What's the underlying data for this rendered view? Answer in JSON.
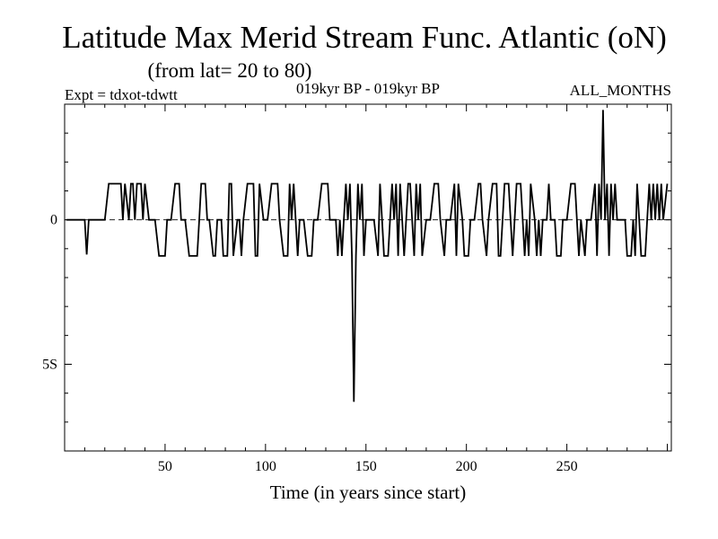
{
  "chart_data": {
    "type": "line",
    "title": "Latitude Max Merid Stream Func. Atlantic (oN)",
    "subtitle": "(from lat= 20 to 80)",
    "header_left": "Expt = tdxot-tdwtt",
    "header_center": "019kyr BP - 019kyr BP",
    "header_right": "ALL_MONTHS",
    "xlabel": "Time (in years since start)",
    "ylabel": "",
    "xlim": [
      0,
      302
    ],
    "ylim": [
      -8,
      4
    ],
    "x_ticks": [
      {
        "value": 50,
        "label": "50"
      },
      {
        "value": 100,
        "label": "100"
      },
      {
        "value": 150,
        "label": "150"
      },
      {
        "value": 200,
        "label": "200"
      },
      {
        "value": 250,
        "label": "250"
      }
    ],
    "y_ticks": [
      {
        "value": 0,
        "label": "0"
      },
      {
        "value": -5,
        "label": "5S"
      }
    ],
    "reference_line": 0,
    "series": [
      {
        "values": [
          [
            1,
            0
          ],
          [
            10,
            0
          ],
          [
            11,
            -1.2
          ],
          [
            12,
            0
          ],
          [
            20,
            0
          ],
          [
            22,
            1.25
          ],
          [
            28,
            1.25
          ],
          [
            29,
            0
          ],
          [
            30,
            1.25
          ],
          [
            32,
            0
          ],
          [
            33,
            1.25
          ],
          [
            34,
            1.25
          ],
          [
            35,
            0
          ],
          [
            36,
            1.25
          ],
          [
            38,
            1.25
          ],
          [
            39,
            0
          ],
          [
            40,
            1.25
          ],
          [
            42,
            0
          ],
          [
            45,
            0
          ],
          [
            47,
            -1.25
          ],
          [
            50,
            -1.25
          ],
          [
            51,
            0
          ],
          [
            53,
            0
          ],
          [
            55,
            1.25
          ],
          [
            57,
            1.25
          ],
          [
            58,
            0
          ],
          [
            60,
            0
          ],
          [
            62,
            -1.25
          ],
          [
            66,
            -1.25
          ],
          [
            67,
            0
          ],
          [
            68,
            1.25
          ],
          [
            70,
            1.25
          ],
          [
            71,
            0
          ],
          [
            72,
            0
          ],
          [
            74,
            -1.25
          ],
          [
            75,
            -1.25
          ],
          [
            76,
            0
          ],
          [
            78,
            0
          ],
          [
            79,
            -1.25
          ],
          [
            81,
            -1.25
          ],
          [
            82,
            1.25
          ],
          [
            83,
            1.25
          ],
          [
            84,
            -1.25
          ],
          [
            86,
            0
          ],
          [
            87,
            0
          ],
          [
            88,
            -1.25
          ],
          [
            89,
            0
          ],
          [
            91,
            1.25
          ],
          [
            94,
            1.25
          ],
          [
            95,
            -1.25
          ],
          [
            96,
            -1.25
          ],
          [
            97,
            1.25
          ],
          [
            99,
            0
          ],
          [
            101,
            0
          ],
          [
            103,
            1.25
          ],
          [
            106,
            1.25
          ],
          [
            107,
            0
          ],
          [
            109,
            -1.25
          ],
          [
            111,
            -1.25
          ],
          [
            112,
            1.25
          ],
          [
            113,
            0
          ],
          [
            114,
            1.25
          ],
          [
            116,
            -1.25
          ],
          [
            117,
            0
          ],
          [
            119,
            0
          ],
          [
            121,
            -1.25
          ],
          [
            123,
            -1.25
          ],
          [
            124,
            0
          ],
          [
            126,
            0
          ],
          [
            128,
            1.25
          ],
          [
            131,
            1.25
          ],
          [
            132,
            0
          ],
          [
            135,
            0
          ],
          [
            136,
            -1.25
          ],
          [
            137,
            0
          ],
          [
            138,
            -1.25
          ],
          [
            139,
            0
          ],
          [
            140,
            1.25
          ],
          [
            141,
            0
          ],
          [
            142,
            1.25
          ],
          [
            143,
            -1.25
          ],
          [
            144,
            -6.3
          ],
          [
            145,
            -1.25
          ],
          [
            146,
            1.25
          ],
          [
            147,
            0
          ],
          [
            148,
            1.25
          ],
          [
            149,
            -1.25
          ],
          [
            150,
            0
          ],
          [
            154,
            0
          ],
          [
            156,
            -1.25
          ],
          [
            157,
            1.25
          ],
          [
            158,
            0
          ],
          [
            159,
            -1.25
          ],
          [
            161,
            -1.25
          ],
          [
            162,
            0
          ],
          [
            163,
            1.25
          ],
          [
            164,
            0
          ],
          [
            165,
            1.25
          ],
          [
            166,
            -1.25
          ],
          [
            167,
            1.25
          ],
          [
            168,
            0
          ],
          [
            169,
            -1.25
          ],
          [
            171,
            1.25
          ],
          [
            172,
            1.25
          ],
          [
            173,
            0
          ],
          [
            174,
            -1.25
          ],
          [
            175,
            1.25
          ],
          [
            176,
            0
          ],
          [
            177,
            1.25
          ],
          [
            178,
            -1.25
          ],
          [
            180,
            0
          ],
          [
            182,
            0
          ],
          [
            184,
            1.25
          ],
          [
            186,
            1.25
          ],
          [
            187,
            0
          ],
          [
            189,
            -1.25
          ],
          [
            190,
            0
          ],
          [
            192,
            0
          ],
          [
            194,
            1.25
          ],
          [
            195,
            -1.25
          ],
          [
            196,
            1.25
          ],
          [
            198,
            0
          ],
          [
            199,
            -1.25
          ],
          [
            201,
            -1.25
          ],
          [
            202,
            0
          ],
          [
            204,
            0
          ],
          [
            206,
            1.25
          ],
          [
            207,
            1.25
          ],
          [
            208,
            0
          ],
          [
            210,
            -1.25
          ],
          [
            211,
            0
          ],
          [
            213,
            1.25
          ],
          [
            215,
            1.25
          ],
          [
            216,
            -1.25
          ],
          [
            217,
            -1.25
          ],
          [
            218,
            0
          ],
          [
            219,
            1.25
          ],
          [
            221,
            1.25
          ],
          [
            222,
            0
          ],
          [
            223,
            -1.25
          ],
          [
            224,
            0
          ],
          [
            225,
            1.25
          ],
          [
            227,
            1.25
          ],
          [
            228,
            0
          ],
          [
            229,
            -1.25
          ],
          [
            230,
            0
          ],
          [
            231,
            -1.25
          ],
          [
            232,
            1.25
          ],
          [
            234,
            0
          ],
          [
            235,
            -1.25
          ],
          [
            236,
            0
          ],
          [
            237,
            -1.25
          ],
          [
            238,
            0
          ],
          [
            240,
            0
          ],
          [
            241,
            1.25
          ],
          [
            242,
            0
          ],
          [
            244,
            0
          ],
          [
            245,
            -1.25
          ],
          [
            247,
            -1.25
          ],
          [
            248,
            0
          ],
          [
            250,
            0
          ],
          [
            252,
            1.25
          ],
          [
            254,
            1.25
          ],
          [
            255,
            0
          ],
          [
            256,
            -1.25
          ],
          [
            257,
            0
          ],
          [
            259,
            -1.25
          ],
          [
            260,
            0
          ],
          [
            262,
            0
          ],
          [
            264,
            1.25
          ],
          [
            265,
            -1.25
          ],
          [
            266,
            1.25
          ],
          [
            267,
            0
          ],
          [
            268,
            3.8
          ],
          [
            269,
            0
          ],
          [
            270,
            1.25
          ],
          [
            271,
            -1.25
          ],
          [
            272,
            1.25
          ],
          [
            273,
            0
          ],
          [
            274,
            1.25
          ],
          [
            275,
            0
          ],
          [
            279,
            0
          ],
          [
            280,
            -1.25
          ],
          [
            282,
            -1.25
          ],
          [
            283,
            0
          ],
          [
            284,
            -1.25
          ],
          [
            285,
            1.25
          ],
          [
            286,
            0
          ],
          [
            287,
            -1.25
          ],
          [
            289,
            -1.25
          ],
          [
            290,
            0
          ],
          [
            291,
            1.25
          ],
          [
            292,
            0
          ],
          [
            293,
            1.25
          ],
          [
            294,
            0
          ],
          [
            295,
            1.25
          ],
          [
            296,
            0
          ],
          [
            297,
            1.25
          ],
          [
            298,
            0
          ],
          [
            300,
            1.25
          ]
        ]
      }
    ]
  }
}
